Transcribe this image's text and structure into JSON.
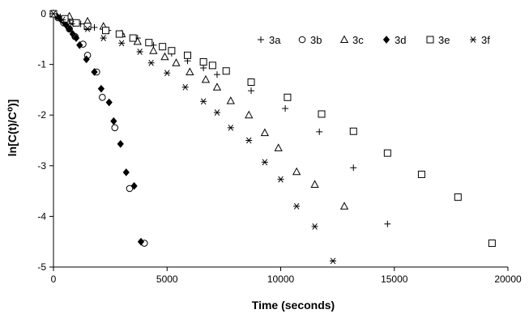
{
  "chart_data": {
    "type": "scatter",
    "title": "",
    "xlabel": "Time (seconds)",
    "ylabel": "ln[C(t)/C⁰)]",
    "xlim": [
      0,
      20000
    ],
    "ylim": [
      -5,
      0
    ],
    "x_ticks": [
      0,
      5000,
      10000,
      15000,
      20000
    ],
    "y_ticks": [
      0,
      -1,
      -2,
      -3,
      -4,
      -5
    ],
    "x_tick_labels": [
      "0",
      "5000",
      "10000",
      "15000",
      "20000"
    ],
    "y_tick_labels": [
      "0",
      "-1",
      "-2",
      "-3",
      "-4",
      "-5"
    ],
    "grid": false,
    "legend_position": "top-right",
    "series": [
      {
        "name": "3a",
        "marker": "plus",
        "points": [
          [
            0,
            0
          ],
          [
            300,
            -0.06
          ],
          [
            700,
            -0.13
          ],
          [
            1200,
            -0.2
          ],
          [
            1800,
            -0.27
          ],
          [
            2400,
            -0.33
          ],
          [
            3000,
            -0.4
          ],
          [
            3700,
            -0.48
          ],
          [
            4400,
            -0.62
          ],
          [
            5200,
            -0.78
          ],
          [
            5900,
            -0.93
          ],
          [
            6600,
            -1.07
          ],
          [
            7200,
            -1.2
          ],
          [
            8700,
            -1.52
          ],
          [
            10200,
            -1.87
          ],
          [
            11700,
            -2.33
          ],
          [
            13200,
            -3.04
          ],
          [
            14700,
            -4.15
          ]
        ]
      },
      {
        "name": "3b",
        "marker": "circle",
        "points": [
          [
            0,
            0
          ],
          [
            200,
            -0.08
          ],
          [
            450,
            -0.18
          ],
          [
            700,
            -0.3
          ],
          [
            950,
            -0.45
          ],
          [
            1300,
            -0.6
          ],
          [
            1500,
            -0.82
          ],
          [
            1900,
            -1.15
          ],
          [
            2150,
            -1.65
          ],
          [
            2700,
            -2.25
          ],
          [
            3350,
            -3.45
          ],
          [
            4000,
            -4.53
          ]
        ]
      },
      {
        "name": "3c",
        "marker": "triangle",
        "points": [
          [
            0,
            0
          ],
          [
            700,
            -0.05
          ],
          [
            1500,
            -0.15
          ],
          [
            2200,
            -0.25
          ],
          [
            3000,
            -0.4
          ],
          [
            3700,
            -0.55
          ],
          [
            4400,
            -0.73
          ],
          [
            4900,
            -0.85
          ],
          [
            5400,
            -0.97
          ],
          [
            6000,
            -1.15
          ],
          [
            6700,
            -1.3
          ],
          [
            7200,
            -1.45
          ],
          [
            7800,
            -1.72
          ],
          [
            8600,
            -2.0
          ],
          [
            9300,
            -2.35
          ],
          [
            9900,
            -2.65
          ],
          [
            10700,
            -3.12
          ],
          [
            11500,
            -3.37
          ],
          [
            12800,
            -3.8
          ]
        ]
      },
      {
        "name": "3d",
        "marker": "diamond",
        "points": [
          [
            0,
            0
          ],
          [
            150,
            -0.05
          ],
          [
            300,
            -0.1
          ],
          [
            450,
            -0.16
          ],
          [
            550,
            -0.22
          ],
          [
            700,
            -0.3
          ],
          [
            850,
            -0.4
          ],
          [
            1000,
            -0.48
          ],
          [
            1150,
            -0.62
          ],
          [
            1450,
            -0.9
          ],
          [
            1800,
            -1.15
          ],
          [
            2100,
            -1.48
          ],
          [
            2450,
            -1.75
          ],
          [
            2650,
            -2.12
          ],
          [
            2950,
            -2.57
          ],
          [
            3200,
            -3.13
          ],
          [
            3550,
            -3.4
          ],
          [
            3850,
            -4.5
          ]
        ]
      },
      {
        "name": "3e",
        "marker": "square",
        "points": [
          [
            0,
            0
          ],
          [
            500,
            -0.1
          ],
          [
            1000,
            -0.18
          ],
          [
            1500,
            -0.25
          ],
          [
            2300,
            -0.33
          ],
          [
            2900,
            -0.4
          ],
          [
            3500,
            -0.48
          ],
          [
            4200,
            -0.57
          ],
          [
            4800,
            -0.65
          ],
          [
            5200,
            -0.73
          ],
          [
            5900,
            -0.82
          ],
          [
            6600,
            -0.95
          ],
          [
            7000,
            -1.02
          ],
          [
            7600,
            -1.13
          ],
          [
            8700,
            -1.35
          ],
          [
            10300,
            -1.65
          ],
          [
            11800,
            -1.98
          ],
          [
            13200,
            -2.32
          ],
          [
            14700,
            -2.75
          ],
          [
            16200,
            -3.17
          ],
          [
            17800,
            -3.62
          ],
          [
            19300,
            -4.53
          ]
        ]
      },
      {
        "name": "3f",
        "marker": "asterisk",
        "points": [
          [
            0,
            0
          ],
          [
            400,
            -0.12
          ],
          [
            800,
            -0.2
          ],
          [
            1500,
            -0.3
          ],
          [
            2200,
            -0.48
          ],
          [
            3000,
            -0.58
          ],
          [
            3800,
            -0.75
          ],
          [
            4300,
            -0.97
          ],
          [
            5000,
            -1.17
          ],
          [
            5800,
            -1.45
          ],
          [
            6600,
            -1.73
          ],
          [
            7200,
            -1.95
          ],
          [
            7800,
            -2.25
          ],
          [
            8600,
            -2.5
          ],
          [
            9300,
            -2.93
          ],
          [
            10000,
            -3.27
          ],
          [
            10700,
            -3.8
          ],
          [
            11500,
            -4.2
          ],
          [
            12300,
            -4.88
          ]
        ]
      }
    ]
  }
}
